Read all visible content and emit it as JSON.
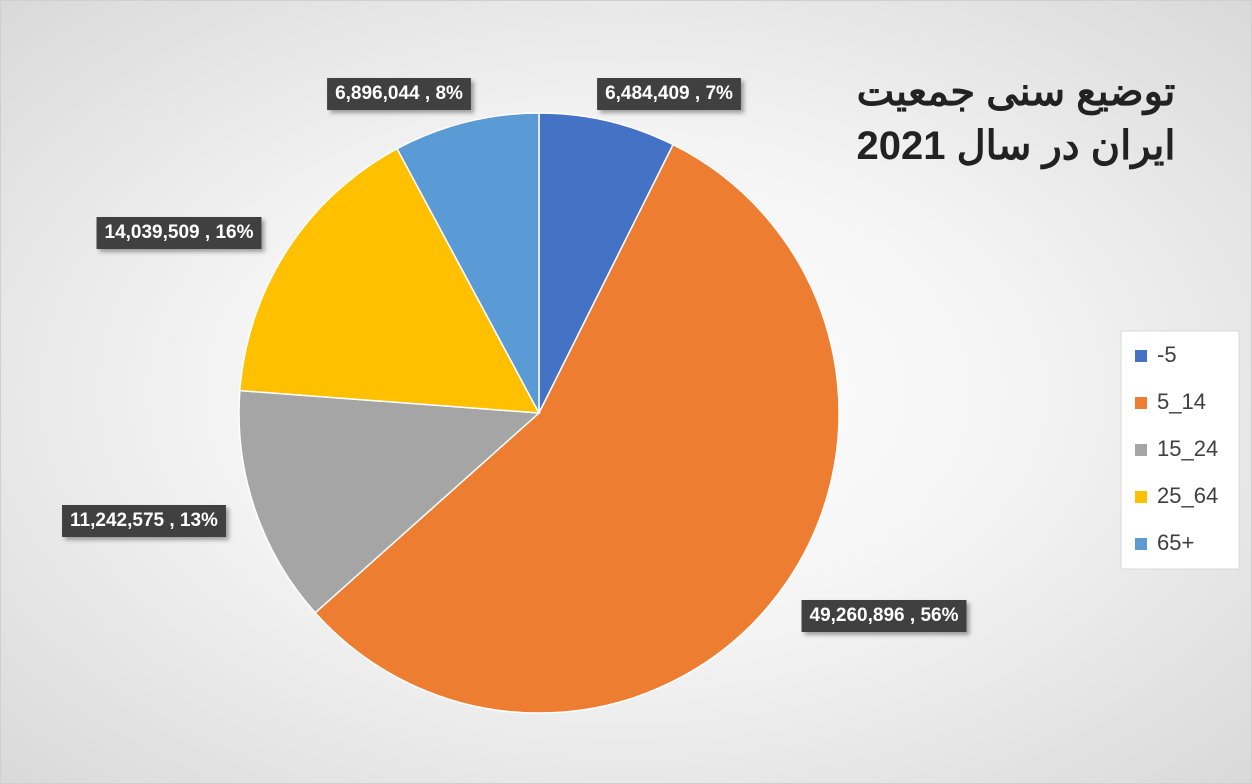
{
  "chart_data": {
    "type": "pie",
    "title": "توضیع سنی جمعیت ایران در سال 2021",
    "categories": [
      "-5",
      "5_14",
      "15_24",
      "25_64",
      "65+"
    ],
    "values": [
      6484409,
      49260896,
      11242575,
      14039509,
      6896044
    ],
    "value_labels": [
      "6,484,409 , 7%",
      "49,260,896 , 56%",
      "11,242,575 , 13%",
      "14,039,509 , 16%",
      "6,896,044 , 8%"
    ],
    "colors": [
      "#4472c4",
      "#ed7d31",
      "#a5a5a5",
      "#ffc000",
      "#5b9bd5"
    ],
    "legend": "right"
  }
}
